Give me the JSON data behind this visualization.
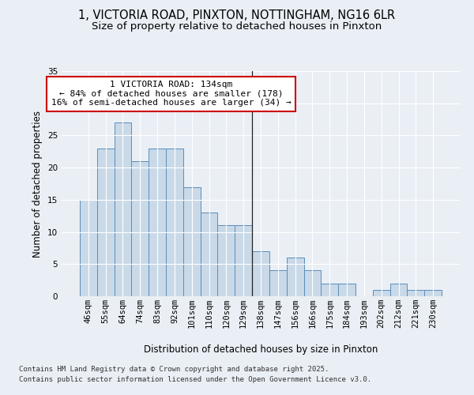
{
  "title_line1": "1, VICTORIA ROAD, PINXTON, NOTTINGHAM, NG16 6LR",
  "title_line2": "Size of property relative to detached houses in Pinxton",
  "xlabel": "Distribution of detached houses by size in Pinxton",
  "ylabel": "Number of detached properties",
  "categories": [
    "46sqm",
    "55sqm",
    "64sqm",
    "74sqm",
    "83sqm",
    "92sqm",
    "101sqm",
    "110sqm",
    "120sqm",
    "129sqm",
    "138sqm",
    "147sqm",
    "156sqm",
    "166sqm",
    "175sqm",
    "184sqm",
    "193sqm",
    "202sqm",
    "212sqm",
    "221sqm",
    "230sqm"
  ],
  "values": [
    15,
    23,
    27,
    21,
    23,
    23,
    17,
    13,
    11,
    11,
    7,
    4,
    6,
    4,
    2,
    2,
    0,
    1,
    2,
    1,
    1
  ],
  "bar_color": "#c9d9e8",
  "bar_edge_color": "#5b8db8",
  "vline_x_index": 9.5,
  "ylim": [
    0,
    35
  ],
  "yticks": [
    0,
    5,
    10,
    15,
    20,
    25,
    30,
    35
  ],
  "bg_color": "#eaeff5",
  "plot_bg_color": "#eaeff5",
  "footer_line1": "Contains HM Land Registry data © Crown copyright and database right 2025.",
  "footer_line2": "Contains public sector information licensed under the Open Government Licence v3.0.",
  "annotation_box_color": "#cc0000",
  "annotation_box_facecolor": "white",
  "annotation_text_line1": "1 VICTORIA ROAD: 134sqm",
  "annotation_text_line2": "← 84% of detached houses are smaller (178)",
  "annotation_text_line3": "16% of semi-detached houses are larger (34) →",
  "title_fontsize": 10.5,
  "subtitle_fontsize": 9.5,
  "axis_label_fontsize": 8.5,
  "tick_fontsize": 7.5,
  "annotation_fontsize": 8,
  "footer_fontsize": 6.5
}
